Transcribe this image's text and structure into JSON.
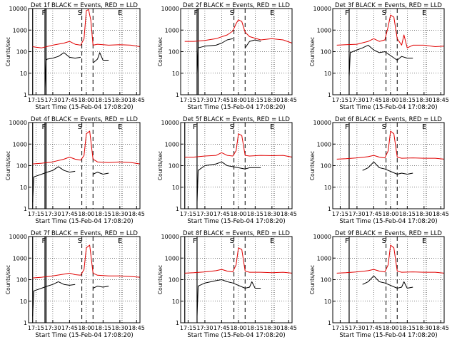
{
  "figure": {
    "shared_ylabel": "Counts/sec",
    "shared_xlabel": "Start Time (15-Feb-04 17:08:20)",
    "x_tick_labels": [
      "17:15",
      "17:30",
      "17:45",
      "18:00",
      "18:15",
      "18:30",
      "18:45"
    ],
    "y_tick_labels": [
      "1",
      "10",
      "100",
      "1000",
      "10000"
    ],
    "marker_labels": [
      "F",
      "S",
      "E"
    ],
    "colors": {
      "events": "#000000",
      "lld": "#e00000",
      "axes": "#000000",
      "background": "#ffffff"
    }
  },
  "chart_data": [
    {
      "type": "line",
      "title": "Det 1f BLACK = Events, RED = LLD",
      "xlim": [
        "17:08:20",
        "18:48"
      ],
      "ylim": [
        1,
        10000
      ],
      "yscale": "log",
      "markers": {
        "F": [
          "17:12",
          "17:23",
          "17:24"
        ],
        "S": [
          "17:56",
          "18:06"
        ],
        "E": [
          "18:32"
        ]
      },
      "series": [
        {
          "name": "Events",
          "color": "#000000",
          "x": [
            "17:23",
            "17:24",
            "17:25",
            "17:30",
            "17:35",
            "17:40",
            "17:45",
            "17:50",
            "17:55",
            "18:00",
            "18:03",
            "18:05",
            "18:06",
            "18:10",
            "18:12",
            "18:15",
            "18:20"
          ],
          "y": [
            2,
            40,
            45,
            50,
            60,
            90,
            55,
            50,
            55,
            null,
            null,
            null,
            30,
            45,
            90,
            40,
            40
          ]
        },
        {
          "name": "LLD",
          "color": "#e00000",
          "x": [
            "17:12",
            "17:15",
            "17:20",
            "17:30",
            "17:40",
            "17:45",
            "17:50",
            "17:55",
            "17:58",
            "18:00",
            "18:02",
            "18:04",
            "18:06",
            "18:10",
            "18:20",
            "18:30",
            "18:40",
            "18:48"
          ],
          "y": [
            170,
            160,
            150,
            200,
            250,
            300,
            220,
            200,
            400,
            8000,
            9000,
            3000,
            200,
            220,
            200,
            210,
            200,
            170
          ]
        }
      ]
    },
    {
      "type": "line",
      "title": "Det 2f BLACK = Events, RED = LLD",
      "xlim": [
        "17:08:20",
        "18:48"
      ],
      "ylim": [
        1,
        10000
      ],
      "yscale": "log",
      "markers": {
        "F": [
          "17:23",
          "17:24"
        ],
        "S": [
          "17:56",
          "18:06"
        ],
        "E": [
          "18:32"
        ]
      },
      "series": [
        {
          "name": "Events",
          "color": "#000000",
          "x": [
            "17:23",
            "17:24",
            "17:30",
            "17:40",
            "17:45",
            "17:50",
            "17:55",
            "18:00",
            "18:05",
            "18:06",
            "18:10",
            "18:15",
            "18:20"
          ],
          "y": [
            10,
            150,
            180,
            200,
            250,
            350,
            400,
            null,
            null,
            150,
            300,
            350,
            300
          ]
        },
        {
          "name": "LLD",
          "color": "#e00000",
          "x": [
            "17:12",
            "17:20",
            "17:30",
            "17:40",
            "17:50",
            "17:55",
            "17:58",
            "18:00",
            "18:03",
            "18:06",
            "18:10",
            "18:20",
            "18:30",
            "18:40",
            "18:48"
          ],
          "y": [
            300,
            300,
            330,
            400,
            600,
            900,
            2000,
            3000,
            2500,
            800,
            500,
            350,
            400,
            350,
            250
          ]
        }
      ]
    },
    {
      "type": "line",
      "title": "Det 3f BLACK = Events, RED = LLD",
      "xlim": [
        "17:08:20",
        "18:48"
      ],
      "ylim": [
        1,
        10000
      ],
      "yscale": "log",
      "markers": {
        "F": [
          "17:23"
        ],
        "S": [
          "17:56",
          "18:06"
        ],
        "E": [
          "18:32"
        ]
      },
      "series": [
        {
          "name": "Events",
          "color": "#000000",
          "x": [
            "17:23",
            "17:24",
            "17:30",
            "17:35",
            "17:40",
            "17:45",
            "17:50",
            "17:55",
            "18:06",
            "18:08",
            "18:10",
            "18:15",
            "18:20"
          ],
          "y": [
            7,
            90,
            120,
            150,
            200,
            120,
            90,
            100,
            40,
            50,
            60,
            50,
            50
          ]
        },
        {
          "name": "LLD",
          "color": "#e00000",
          "x": [
            "17:12",
            "17:20",
            "17:30",
            "17:40",
            "17:45",
            "17:50",
            "17:55",
            "17:58",
            "18:00",
            "18:03",
            "18:06",
            "18:10",
            "18:12",
            "18:15",
            "18:20",
            "18:30",
            "18:40",
            "18:48"
          ],
          "y": [
            200,
            210,
            220,
            300,
            400,
            300,
            350,
            1500,
            5000,
            4000,
            400,
            200,
            600,
            150,
            200,
            200,
            170,
            180
          ]
        }
      ]
    },
    {
      "type": "line",
      "title": "Det 4f BLACK = Events, RED = LLD",
      "xlim": [
        "17:08:20",
        "18:48"
      ],
      "ylim": [
        1,
        10000
      ],
      "yscale": "log",
      "markers": {
        "F": [
          "17:12",
          "17:23",
          "17:24"
        ],
        "S": [
          "17:56",
          "18:06"
        ],
        "E": [
          "18:32"
        ]
      },
      "series": [
        {
          "name": "Events",
          "color": "#000000",
          "x": [
            "17:12",
            "17:13",
            "17:20",
            "17:25",
            "17:30",
            "17:35",
            "17:40",
            "17:45",
            "17:50",
            "17:55",
            "18:06",
            "18:10",
            "18:15",
            "18:20"
          ],
          "y": [
            2,
            30,
            40,
            50,
            60,
            90,
            60,
            50,
            55,
            null,
            40,
            50,
            40,
            45
          ]
        },
        {
          "name": "LLD",
          "color": "#e00000",
          "x": [
            "17:12",
            "17:20",
            "17:30",
            "17:40",
            "17:45",
            "17:50",
            "17:55",
            "17:58",
            "18:00",
            "18:03",
            "18:06",
            "18:10",
            "18:20",
            "18:30",
            "18:40",
            "18:48"
          ],
          "y": [
            120,
            130,
            150,
            200,
            250,
            200,
            180,
            300,
            3000,
            4000,
            200,
            150,
            140,
            150,
            140,
            120
          ]
        }
      ]
    },
    {
      "type": "line",
      "title": "Det 5f BLACK = Events, RED = LLD",
      "xlim": [
        "17:08:20",
        "18:48"
      ],
      "ylim": [
        1,
        10000
      ],
      "yscale": "log",
      "markers": {
        "F": [
          "17:12",
          "17:23"
        ],
        "S": [
          "17:56",
          "18:06"
        ],
        "E": [
          "18:32"
        ]
      },
      "series": [
        {
          "name": "Events",
          "color": "#000000",
          "x": [
            "17:23",
            "17:24",
            "17:30",
            "17:40",
            "17:45",
            "17:50",
            "17:55",
            "18:06",
            "18:10",
            "18:15",
            "18:20"
          ],
          "y": [
            2,
            60,
            100,
            120,
            150,
            100,
            90,
            70,
            80,
            80,
            80
          ]
        },
        {
          "name": "LLD",
          "color": "#e00000",
          "x": [
            "17:12",
            "17:20",
            "17:30",
            "17:40",
            "17:45",
            "17:50",
            "17:55",
            "17:58",
            "18:00",
            "18:03",
            "18:06",
            "18:10",
            "18:20",
            "18:30",
            "18:40",
            "18:48"
          ],
          "y": [
            250,
            250,
            280,
            300,
            400,
            300,
            280,
            500,
            3000,
            2500,
            300,
            280,
            300,
            290,
            300,
            250
          ]
        }
      ]
    },
    {
      "type": "line",
      "title": "Det 6f BLACK = Events, RED = LLD",
      "xlim": [
        "17:08:20",
        "18:48"
      ],
      "ylim": [
        1,
        10000
      ],
      "yscale": "log",
      "markers": {
        "F": [
          "17:23"
        ],
        "S": [
          "17:56",
          "18:06"
        ],
        "E": [
          "18:32"
        ]
      },
      "series": [
        {
          "name": "Events",
          "color": "#000000",
          "x": [
            "17:35",
            "17:40",
            "17:45",
            "17:50",
            "17:55",
            "18:06",
            "18:10",
            "18:15",
            "18:20"
          ],
          "y": [
            60,
            80,
            150,
            80,
            70,
            40,
            45,
            40,
            45
          ]
        },
        {
          "name": "LLD",
          "color": "#e00000",
          "x": [
            "17:12",
            "17:20",
            "17:30",
            "17:40",
            "17:45",
            "17:50",
            "17:55",
            "17:58",
            "18:00",
            "18:03",
            "18:06",
            "18:10",
            "18:20",
            "18:30",
            "18:40",
            "18:48"
          ],
          "y": [
            200,
            210,
            230,
            260,
            300,
            250,
            230,
            500,
            4000,
            3000,
            250,
            220,
            230,
            220,
            220,
            200
          ]
        }
      ]
    },
    {
      "type": "line",
      "title": "Det 7f BLACK = Events, RED = LLD",
      "xlim": [
        "17:08:20",
        "18:48"
      ],
      "ylim": [
        1,
        10000
      ],
      "yscale": "log",
      "markers": {
        "F": [
          "17:12",
          "17:23",
          "17:24"
        ],
        "S": [
          "17:56",
          "18:06"
        ],
        "E": [
          "18:32"
        ]
      },
      "series": [
        {
          "name": "Events",
          "color": "#000000",
          "x": [
            "17:12",
            "17:13",
            "17:20",
            "17:25",
            "17:30",
            "17:35",
            "17:40",
            "17:45",
            "17:50",
            "17:55",
            "18:06",
            "18:10",
            "18:15",
            "18:20"
          ],
          "y": [
            2,
            30,
            40,
            50,
            60,
            80,
            60,
            55,
            60,
            null,
            40,
            50,
            45,
            50
          ]
        },
        {
          "name": "LLD",
          "color": "#e00000",
          "x": [
            "17:12",
            "17:20",
            "17:30",
            "17:40",
            "17:45",
            "17:50",
            "17:55",
            "17:58",
            "18:00",
            "18:03",
            "18:06",
            "18:10",
            "18:20",
            "18:30",
            "18:40",
            "18:48"
          ],
          "y": [
            120,
            130,
            150,
            180,
            200,
            170,
            160,
            300,
            3000,
            4000,
            200,
            160,
            150,
            150,
            140,
            130
          ]
        }
      ]
    },
    {
      "type": "line",
      "title": "Det 8f BLACK = Events, RED = LLD",
      "xlim": [
        "17:08:20",
        "18:48"
      ],
      "ylim": [
        1,
        10000
      ],
      "yscale": "log",
      "markers": {
        "F": [
          "17:12",
          "17:23"
        ],
        "S": [
          "17:56",
          "18:06"
        ],
        "E": [
          "18:32"
        ]
      },
      "series": [
        {
          "name": "Events",
          "color": "#000000",
          "x": [
            "17:23",
            "17:24",
            "17:30",
            "17:40",
            "17:45",
            "17:50",
            "17:55",
            "18:06",
            "18:10",
            "18:12",
            "18:15",
            "18:20"
          ],
          "y": [
            2,
            50,
            70,
            90,
            100,
            80,
            70,
            40,
            45,
            80,
            40,
            40
          ]
        },
        {
          "name": "LLD",
          "color": "#e00000",
          "x": [
            "17:12",
            "17:20",
            "17:30",
            "17:40",
            "17:45",
            "17:50",
            "17:55",
            "17:58",
            "18:00",
            "18:03",
            "18:06",
            "18:10",
            "18:20",
            "18:30",
            "18:40",
            "18:48"
          ],
          "y": [
            200,
            210,
            230,
            260,
            300,
            250,
            230,
            500,
            3000,
            2500,
            250,
            220,
            220,
            210,
            220,
            200
          ]
        }
      ]
    },
    {
      "type": "line",
      "title": "Det 9f BLACK = Events, RED = LLD",
      "xlim": [
        "17:08:20",
        "18:48"
      ],
      "ylim": [
        1,
        10000
      ],
      "yscale": "log",
      "markers": {
        "F": [
          "17:23"
        ],
        "S": [
          "17:56",
          "18:06"
        ],
        "E": [
          "18:32"
        ]
      },
      "series": [
        {
          "name": "Events",
          "color": "#000000",
          "x": [
            "17:35",
            "17:40",
            "17:45",
            "17:50",
            "17:55",
            "18:06",
            "18:10",
            "18:12",
            "18:15",
            "18:20"
          ],
          "y": [
            60,
            80,
            150,
            80,
            70,
            40,
            45,
            80,
            40,
            45
          ]
        },
        {
          "name": "LLD",
          "color": "#e00000",
          "x": [
            "17:12",
            "17:20",
            "17:30",
            "17:40",
            "17:45",
            "17:50",
            "17:55",
            "17:58",
            "18:00",
            "18:03",
            "18:06",
            "18:10",
            "18:20",
            "18:30",
            "18:40",
            "18:48"
          ],
          "y": [
            200,
            210,
            230,
            260,
            300,
            250,
            230,
            500,
            4000,
            3000,
            250,
            220,
            230,
            220,
            220,
            200
          ]
        }
      ]
    }
  ]
}
